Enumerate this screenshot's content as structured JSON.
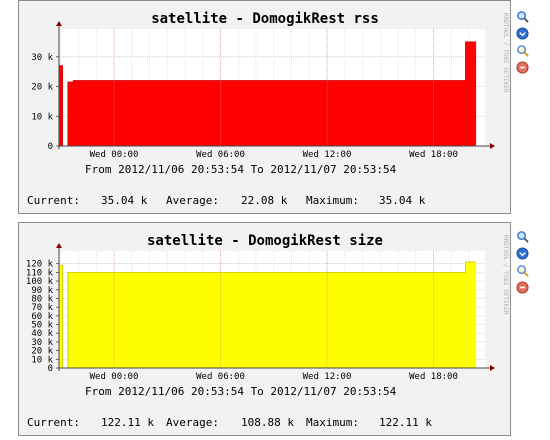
{
  "graphs": [
    {
      "title": "satellite - DomogikRest rss",
      "range_label": "From 2012/11/06 20:53:54 To 2012/11/07 20:53:54",
      "stats": {
        "current_label": "Current:",
        "current_value": "35.04 k",
        "average_label": "Average:",
        "average_value": "22.08 k",
        "maximum_label": "Maximum:",
        "maximum_value": "35.04 k"
      },
      "watermark": "RRDTOOL / TOBI OETIKER",
      "color": "#ff0000",
      "chart_data": {
        "type": "area",
        "y_ticks": [
          "0",
          "10 k",
          "20 k",
          "30 k"
        ],
        "x_ticks": [
          "Wed 00:00",
          "Wed 06:00",
          "Wed 12:00",
          "Wed 18:00"
        ],
        "ylim": [
          0,
          38
        ],
        "x_hours": [
          0,
          0.2,
          0.2,
          0.5,
          0.5,
          0.8,
          0.8,
          22.9,
          22.9,
          23.5
        ],
        "values": [
          27,
          27,
          0,
          0,
          21.5,
          21.5,
          22,
          22,
          35,
          35
        ]
      }
    },
    {
      "title": "satellite - DomogikRest size",
      "range_label": "From 2012/11/06 20:53:54 To 2012/11/07 20:53:54",
      "stats": {
        "current_label": "Current:",
        "current_value": "122.11 k",
        "average_label": "Average:",
        "average_value": "108.88 k",
        "maximum_label": "Maximum:",
        "maximum_value": "122.11 k"
      },
      "watermark": "RRDTOOL / TOBI OETIKER",
      "color": "#ffff00",
      "chart_data": {
        "type": "area",
        "y_ticks": [
          "0",
          "10 k",
          "20 k",
          "30 k",
          "40 k",
          "50 k",
          "60 k",
          "70 k",
          "80 k",
          "90 k",
          "100 k",
          "110 k",
          "120 k"
        ],
        "x_ticks": [
          "Wed 00:00",
          "Wed 06:00",
          "Wed 12:00",
          "Wed 18:00"
        ],
        "ylim": [
          0,
          130
        ],
        "x_hours": [
          0,
          0.2,
          0.2,
          0.5,
          0.5,
          22.9,
          22.9,
          23.5
        ],
        "values": [
          118,
          118,
          0,
          0,
          110,
          110,
          122,
          122
        ]
      }
    }
  ],
  "side_icons": [
    {
      "icon": "zoom-magnifier-icon",
      "color": "#3b7fd6"
    },
    {
      "icon": "blue-circle-icon",
      "color": "#2f6fd0"
    },
    {
      "icon": "edit-magnifier-icon",
      "color": "#d6a12a"
    },
    {
      "icon": "delete-circle-icon",
      "color": "#d24a3a"
    }
  ]
}
